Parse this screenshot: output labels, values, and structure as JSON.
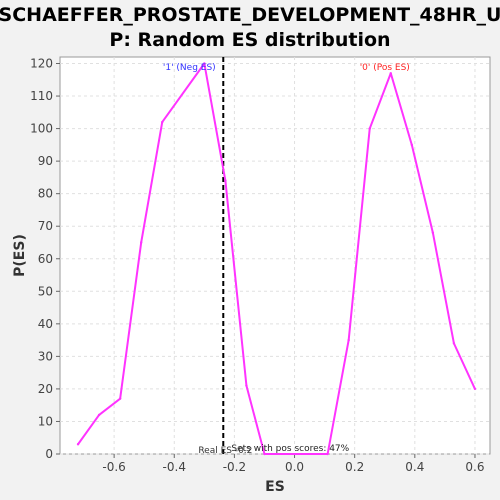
{
  "chart_data": {
    "type": "line",
    "title_lines": [
      "SCHAEFFER_PROSTATE_DEVELOPMENT_48HR_U",
      "P: Random ES distribution"
    ],
    "xlabel": "ES",
    "ylabel": "P(ES)",
    "xlim": [
      -0.78,
      0.65
    ],
    "ylim": [
      0,
      122
    ],
    "xticks": [
      -0.6,
      -0.4,
      -0.2,
      0.0,
      0.2,
      0.4,
      0.6
    ],
    "xtick_labels": [
      "-0.6",
      "-0.4",
      "-0.2",
      "0.0",
      "0.2",
      "0.4",
      "0.6"
    ],
    "yticks": [
      0,
      10,
      20,
      30,
      40,
      50,
      60,
      70,
      80,
      90,
      100,
      110,
      120
    ],
    "ytick_labels": [
      "0",
      "10",
      "20",
      "30",
      "40",
      "50",
      "60",
      "70",
      "80",
      "90",
      "100",
      "110",
      "120"
    ],
    "grid": true,
    "series": [
      {
        "color": "#ff33ff",
        "points": [
          [
            -0.72,
            3
          ],
          [
            -0.65,
            12
          ],
          [
            -0.58,
            17
          ],
          [
            -0.51,
            65
          ],
          [
            -0.44,
            102
          ],
          [
            -0.3,
            120
          ],
          [
            -0.23,
            84
          ],
          [
            -0.16,
            21
          ],
          [
            -0.1,
            0
          ],
          [
            0.11,
            0
          ],
          [
            0.18,
            35
          ],
          [
            0.25,
            100
          ],
          [
            0.32,
            117
          ],
          [
            0.39,
            95
          ],
          [
            0.46,
            68
          ],
          [
            0.53,
            34
          ],
          [
            0.6,
            20
          ]
        ]
      }
    ],
    "real_es": -0.237,
    "annotations": {
      "neg_label": "'1' (Neg ES)",
      "neg_color": "#3333ff",
      "pos_label": "'0' (Pos ES)",
      "pos_color": "#ff2222",
      "pos_scores": "Sets with pos scores: 47%",
      "real_es_label": "Real ES -0.2"
    }
  }
}
